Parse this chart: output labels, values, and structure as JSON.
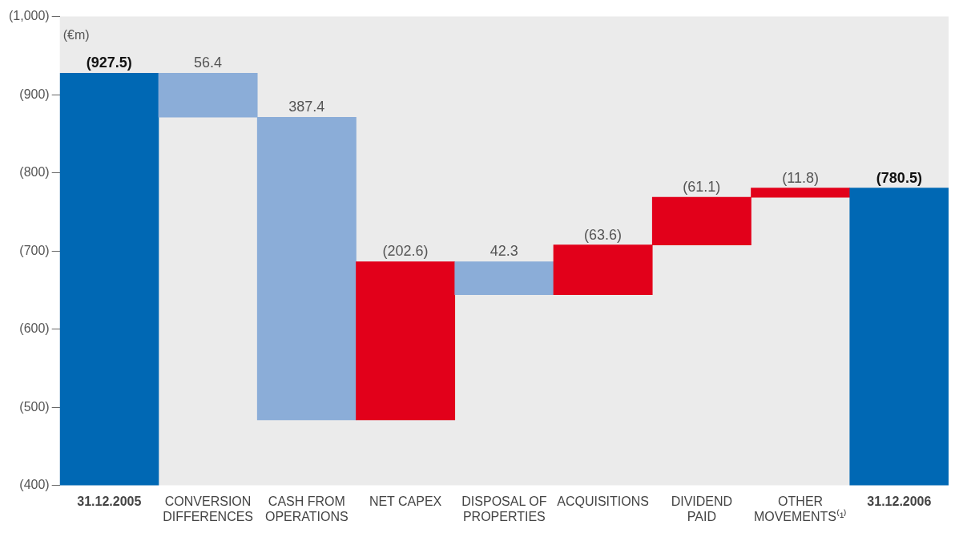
{
  "chart_data": {
    "type": "bar",
    "ylabel": "(€m)",
    "categories": [
      "31.12.2005",
      "CONVERSION DIFFERENCES",
      "CASH FROM OPERATIONS",
      "NET CAPEX",
      "DISPOSAL OF PROPERTIES",
      "ACQUISITIONS",
      "DIVIDEND PAID",
      "OTHER MOVEMENTS⁽¹⁾",
      "31.12.2006"
    ],
    "values": [
      927.5,
      56.4,
      387.4,
      202.6,
      42.3,
      63.6,
      61.1,
      11.8,
      780.5
    ],
    "base": [
      null,
      871.1,
      483.7,
      483.7,
      644.0,
      644.0,
      707.6,
      768.7,
      null
    ],
    "colors": [
      "#0068b4",
      "#8badd8",
      "#8badd8",
      "#e2001a",
      "#8badd8",
      "#e2001a",
      "#e2001a",
      "#e2001a",
      "#0068b4"
    ],
    "value_labels": [
      "(927.5)",
      "56.4",
      "387.4",
      "(202.6)",
      "42.3",
      "(63.6)",
      "(61.1)",
      "(11.8)",
      "(780.5)"
    ],
    "ylim": [
      400,
      1000
    ],
    "yticks": [
      {
        "value": 400,
        "label": "(400)"
      },
      {
        "value": 500,
        "label": "(500)"
      },
      {
        "value": 600,
        "label": "(600)"
      },
      {
        "value": 700,
        "label": "(700)"
      },
      {
        "value": 800,
        "label": "(800)"
      },
      {
        "value": 900,
        "label": "(900)"
      },
      {
        "value": 1000,
        "label": "(1,000)"
      }
    ]
  }
}
